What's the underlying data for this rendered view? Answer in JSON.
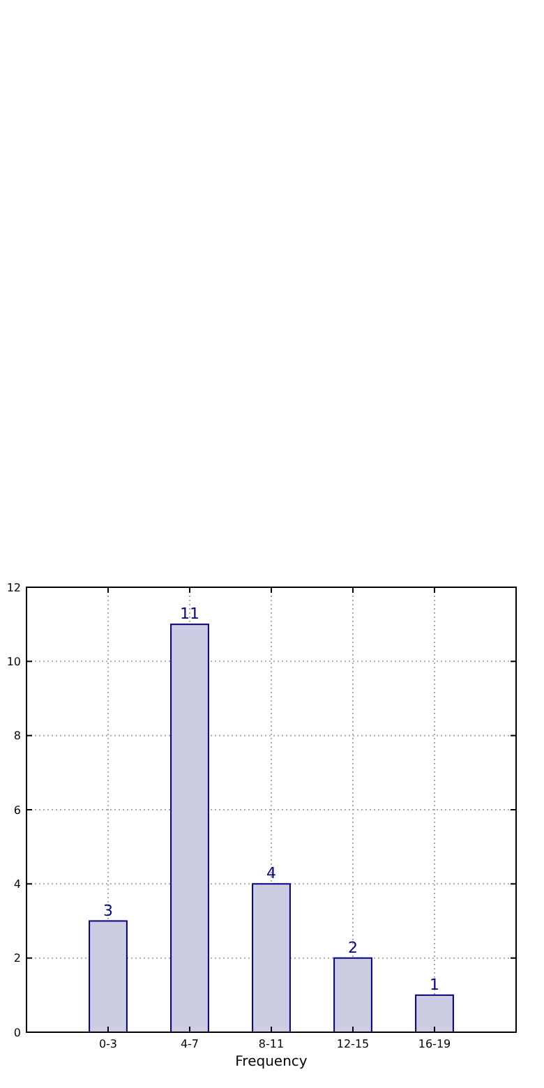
{
  "chart_data": {
    "type": "bar",
    "xlabel": "Frequency",
    "categories": [
      "0-3",
      "4-7",
      "8-11",
      "12-15",
      "16-19"
    ],
    "series": [
      {
        "color": "#ccccE3",
        "values": [
          3,
          11,
          4,
          2,
          1
        ]
      }
    ],
    "ylim": [
      0,
      12
    ],
    "yticks": [
      0,
      2,
      4,
      6,
      8,
      10,
      12
    ],
    "grid": true,
    "data_labels": true
  }
}
